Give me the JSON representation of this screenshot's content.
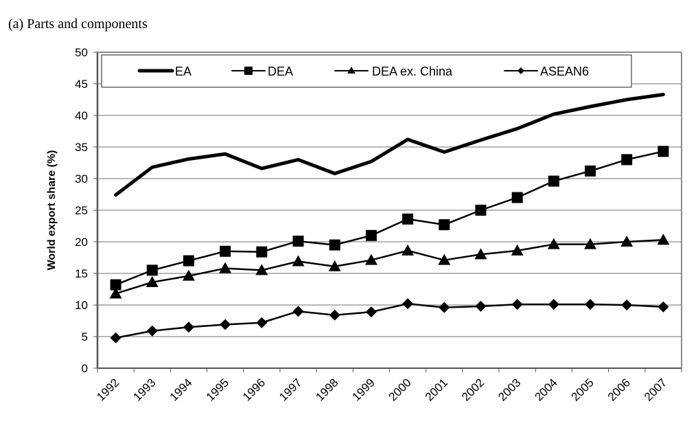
{
  "panel_title": "(a)  Parts and components",
  "chart_data": {
    "type": "line",
    "title": "(a)  Parts and components",
    "xlabel": "",
    "ylabel": "World export share (%)",
    "ylim": [
      0,
      50
    ],
    "yticks": [
      0,
      5,
      10,
      15,
      20,
      25,
      30,
      35,
      40,
      45,
      50
    ],
    "grid": "horizontal",
    "legend_position": "top",
    "categories": [
      "1992",
      "1993",
      "1994",
      "1995",
      "1996",
      "1997",
      "1998",
      "1999",
      "2000",
      "2001",
      "2002",
      "2003",
      "2004",
      "2005",
      "2006",
      "2007"
    ],
    "series": [
      {
        "name": "EA",
        "marker": "none",
        "values": [
          27.4,
          31.8,
          33.1,
          33.9,
          31.6,
          33.0,
          30.8,
          32.7,
          36.2,
          34.2,
          36.1,
          37.9,
          40.2,
          41.4,
          42.5,
          43.3
        ]
      },
      {
        "name": "DEA",
        "marker": "square",
        "values": [
          13.2,
          15.5,
          17.0,
          18.5,
          18.4,
          20.1,
          19.5,
          21.0,
          23.6,
          22.7,
          25.0,
          27.0,
          29.6,
          31.2,
          33.0,
          34.3
        ]
      },
      {
        "name": "DEA ex. China",
        "marker": "triangle",
        "values": [
          11.8,
          13.6,
          14.6,
          15.8,
          15.5,
          16.9,
          16.1,
          17.1,
          18.6,
          17.1,
          18.0,
          18.6,
          19.6,
          19.6,
          20.0,
          20.3
        ]
      },
      {
        "name": "ASEAN6",
        "marker": "diamond",
        "values": [
          4.8,
          5.9,
          6.5,
          6.9,
          7.2,
          9.0,
          8.4,
          8.9,
          10.2,
          9.6,
          9.8,
          10.1,
          10.1,
          10.1,
          10.0,
          9.7
        ]
      }
    ]
  }
}
